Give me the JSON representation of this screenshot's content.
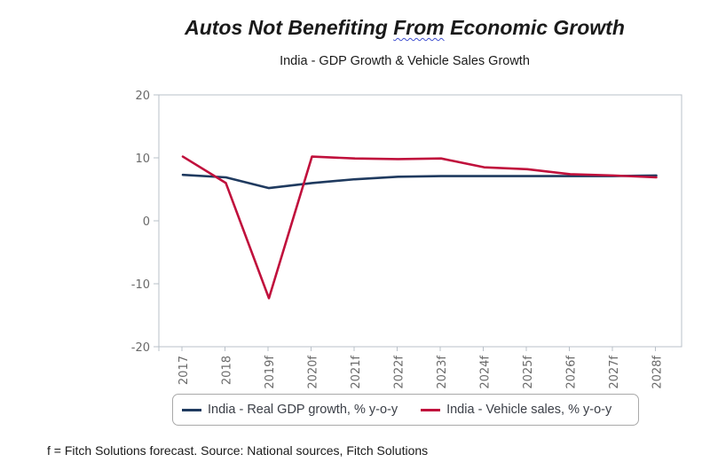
{
  "title_parts": [
    "Autos Not Benefiting ",
    "From",
    " Economic Growth"
  ],
  "subtitle": "India - GDP Growth & Vehicle Sales Growth",
  "footnote": "f = Fitch Solutions forecast. Source: National sources, Fitch Solutions",
  "chart_data": {
    "type": "line",
    "categories": [
      "2017",
      "2018",
      "2019f",
      "2020f",
      "2021f",
      "2022f",
      "2023f",
      "2024f",
      "2025f",
      "2026f",
      "2027f",
      "2028f"
    ],
    "series": [
      {
        "name": "India - Real GDP growth, % y-o-y",
        "color": "#1f3a5f",
        "values": [
          7.3,
          6.9,
          5.2,
          6.0,
          6.6,
          7.0,
          7.1,
          7.1,
          7.1,
          7.1,
          7.1,
          7.2
        ]
      },
      {
        "name": "India - Vehicle sales, % y-o-y",
        "color": "#c0103c",
        "values": [
          10.2,
          6.0,
          -12.3,
          10.2,
          9.9,
          9.8,
          9.9,
          8.5,
          8.2,
          7.4,
          7.2,
          6.9
        ]
      }
    ],
    "yticks": [
      20,
      10,
      0,
      -10,
      -20
    ],
    "ylim": [
      -20,
      20
    ],
    "grid": false
  }
}
